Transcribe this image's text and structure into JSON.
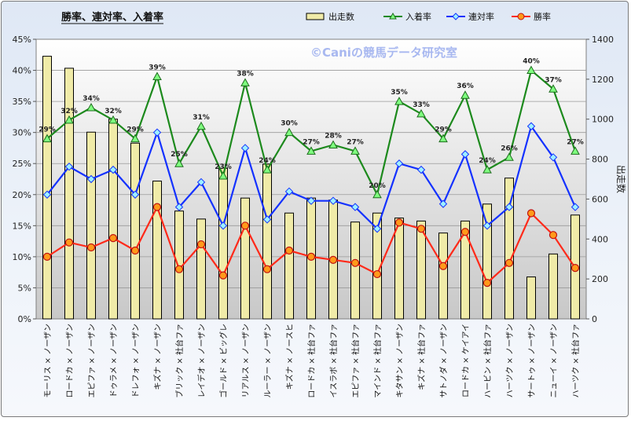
{
  "chart_data": {
    "type": "bar+line",
    "title": "勝率、連対率、入着率",
    "watermark": "©Caniの競馬データ研究室",
    "categories": [
      "モーリス × ノーザン",
      "ロードカ × ノーザン",
      "エピファ × ノーザン",
      "ドゥラメ × ノーザン",
      "ドレフォ × ノーザン",
      "キズナ × ノーザン",
      "ブリック × 社台ファ",
      "レイデオ × ノーザン",
      "ゴールド × ビッグレ",
      "リアルス × ノーザン",
      "ルーラー × ノーザン",
      "キズナ × ノースヒ",
      "ロードカ × 社台ファ",
      "イスラボ × 社台ファ",
      "エピファ × 社台ファ",
      "マインド × 社台ファ",
      "キタサン × ノーザン",
      "キズナ × 社台ファ",
      "サトノダ × ノーザン",
      "ロードカ × ケイアイ",
      "ハービン × 社台ファ",
      "ハーツク × ノーザン",
      "サートゥ × ノーザン",
      "ニューイ × ノーザン",
      "ハーツク × 社台ファ"
    ],
    "left_axis": {
      "ylim": [
        0,
        45
      ],
      "ticks": [
        "0%",
        "5%",
        "10%",
        "15%",
        "20%",
        "25%",
        "30%",
        "35%",
        "40%",
        "45%"
      ]
    },
    "right_axis": {
      "label": "出走数",
      "ylim": [
        0,
        1400
      ],
      "ticks": [
        "0",
        "200",
        "400",
        "600",
        "800",
        "1000",
        "1200",
        "1400"
      ]
    },
    "legend_position": "top",
    "series": [
      {
        "name": "出走数",
        "kind": "bar",
        "axis": "right",
        "color": "#f0eba8",
        "values": [
          1315,
          1255,
          935,
          1000,
          880,
          690,
          540,
          500,
          755,
          605,
          775,
          530,
          605,
          595,
          485,
          530,
          505,
          490,
          430,
          490,
          575,
          705,
          210,
          325,
          520
        ]
      },
      {
        "name": "入着率",
        "kind": "line",
        "axis": "left",
        "color": "#1d8a1d",
        "values": [
          29,
          32,
          34,
          32,
          29,
          39,
          25,
          31,
          23,
          38,
          24,
          30,
          27,
          28,
          27,
          20,
          35,
          33,
          29,
          36,
          24,
          26,
          40,
          37,
          27
        ],
        "labels": [
          "29%",
          "32%",
          "34%",
          "32%",
          "29%",
          "39%",
          "25%",
          "31%",
          "23%",
          "38%",
          "24%",
          "30%",
          "27%",
          "28%",
          "27%",
          "20%",
          "35%",
          "33%",
          "29%",
          "36%",
          "24%",
          "26%",
          "40%",
          "37%",
          "27%"
        ]
      },
      {
        "name": "連対率",
        "kind": "line",
        "axis": "left",
        "color": "#1432ff",
        "values": [
          20,
          24.5,
          22.5,
          24,
          20,
          30,
          18,
          22,
          15,
          27.5,
          16,
          20.5,
          19,
          19,
          18,
          14.5,
          25,
          24,
          18.5,
          26.5,
          15,
          18,
          31,
          26,
          18
        ]
      },
      {
        "name": "勝率",
        "kind": "line",
        "axis": "left",
        "color": "#ff2a1a",
        "values": [
          10,
          12.3,
          11.5,
          13,
          11,
          18,
          8,
          12,
          7,
          15,
          8,
          11,
          10,
          9.5,
          9,
          7.2,
          15.5,
          14.5,
          8.5,
          14,
          5.8,
          9,
          17,
          13.5,
          8.2
        ]
      }
    ]
  }
}
